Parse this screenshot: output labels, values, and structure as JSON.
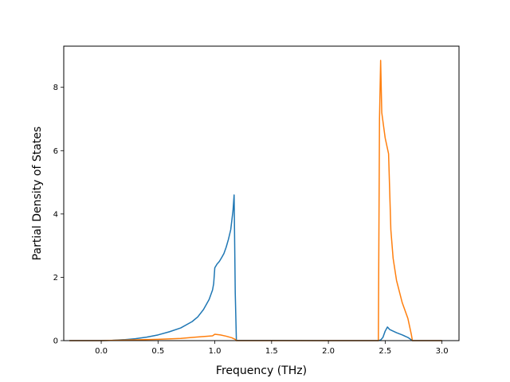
{
  "chart_data": {
    "type": "line",
    "title": "",
    "xlabel": "Frequency (THz)",
    "ylabel": "Partial Density of States",
    "xlim": [
      -0.33,
      3.15
    ],
    "ylim": [
      0,
      9.3
    ],
    "xticks": [
      0.0,
      0.5,
      1.0,
      1.5,
      2.0,
      2.5,
      3.0
    ],
    "xtick_labels": [
      "0.0",
      "0.5",
      "1.0",
      "1.5",
      "2.0",
      "2.5",
      "3.0"
    ],
    "yticks": [
      0,
      2,
      4,
      6,
      8
    ],
    "ytick_labels": [
      "0",
      "2",
      "4",
      "6",
      "8"
    ],
    "grid": false,
    "legend": "none",
    "series": [
      {
        "color": "#1f77b4",
        "x": [
          -0.28,
          0.0,
          0.1,
          0.2,
          0.3,
          0.4,
          0.5,
          0.6,
          0.7,
          0.8,
          0.85,
          0.9,
          0.95,
          0.98,
          0.99,
          1.0,
          1.02,
          1.04,
          1.06,
          1.08,
          1.1,
          1.12,
          1.14,
          1.16,
          1.17,
          1.18,
          1.19,
          2.0,
          2.44,
          2.46,
          2.48,
          2.5,
          2.52,
          2.54,
          2.6,
          2.65,
          2.7,
          2.74,
          3.0
        ],
        "y": [
          0,
          0,
          0.01,
          0.03,
          0.06,
          0.11,
          0.18,
          0.28,
          0.4,
          0.6,
          0.75,
          0.98,
          1.3,
          1.6,
          1.8,
          2.3,
          2.42,
          2.5,
          2.62,
          2.75,
          2.95,
          3.2,
          3.5,
          4.1,
          4.6,
          1.5,
          0.01,
          0,
          0,
          0.02,
          0.1,
          0.3,
          0.43,
          0.35,
          0.25,
          0.18,
          0.1,
          0,
          0
        ]
      },
      {
        "color": "#ff7f0e",
        "x": [
          -0.28,
          0.0,
          0.5,
          0.7,
          0.8,
          0.9,
          0.98,
          1.0,
          1.05,
          1.1,
          1.15,
          1.18,
          1.19,
          2.0,
          2.44,
          2.45,
          2.46,
          2.47,
          2.5,
          2.53,
          2.55,
          2.57,
          2.6,
          2.65,
          2.7,
          2.73,
          2.74,
          3.0
        ],
        "y": [
          0,
          0,
          0.04,
          0.07,
          0.1,
          0.13,
          0.15,
          0.2,
          0.18,
          0.14,
          0.09,
          0.04,
          0,
          0,
          0,
          7.0,
          8.85,
          7.2,
          6.4,
          5.9,
          3.5,
          2.6,
          1.9,
          1.2,
          0.7,
          0.2,
          0,
          0
        ]
      }
    ]
  }
}
